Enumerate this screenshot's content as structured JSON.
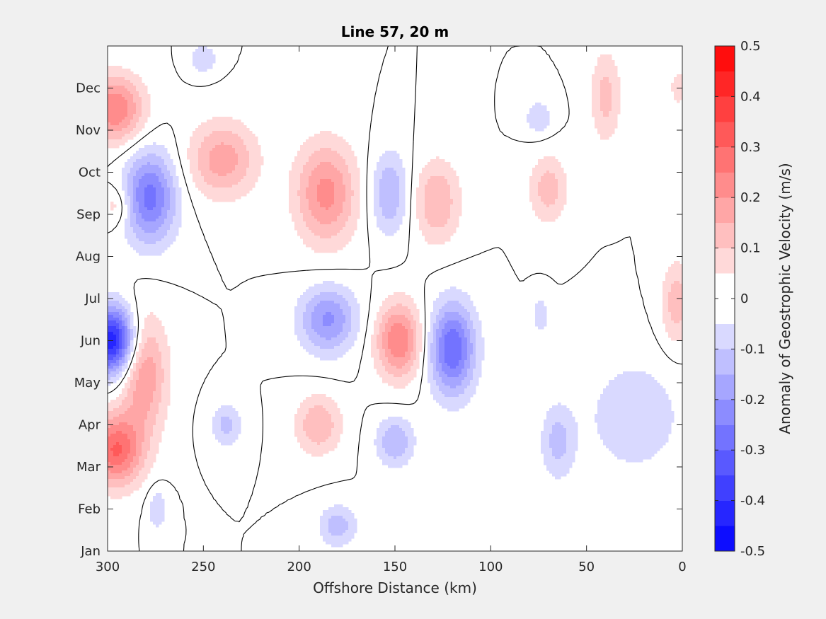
{
  "chart_data": {
    "type": "heatmap",
    "subtype": "filled-contour",
    "title": "Line 57, 20 m",
    "xlabel": "Offshore Distance (km)",
    "ylabel": "",
    "xlim": [
      300,
      0
    ],
    "x_ticks": [
      300,
      250,
      200,
      150,
      100,
      50,
      0
    ],
    "y_ticks": [
      "Jan",
      "Feb",
      "Mar",
      "Apr",
      "May",
      "Jun",
      "Jul",
      "Aug",
      "Sep",
      "Oct",
      "Nov",
      "Dec"
    ],
    "colorbar": {
      "label": "Anomaly of Geostrophic Velocity (m/s)",
      "range": [
        -0.5,
        0.5
      ],
      "ticks": [
        0.5,
        0.4,
        0.3,
        0.2,
        0.1,
        0,
        -0.1,
        -0.2,
        -0.3,
        -0.4,
        -0.5
      ],
      "levels": [
        -0.5,
        -0.45,
        -0.4,
        -0.35,
        -0.3,
        -0.25,
        -0.2,
        -0.15,
        -0.1,
        -0.05,
        0,
        0.05,
        0.1,
        0.15,
        0.2,
        0.25,
        0.3,
        0.35,
        0.4,
        0.45,
        0.5
      ],
      "colormap": "blue-white-red"
    },
    "features": [
      {
        "name": "nearshore-jun-min",
        "x_km": 298,
        "month": 5.0,
        "value": -0.45,
        "sx": 12,
        "sy": 0.8
      },
      {
        "name": "mar-max-offshore",
        "x_km": 296,
        "month": 2.4,
        "value": 0.3,
        "sx": 14,
        "sy": 0.85
      },
      {
        "name": "dec-max-offshore",
        "x_km": 296,
        "month": 10.5,
        "value": 0.25,
        "sx": 15,
        "sy": 0.8
      },
      {
        "name": "aug-sep-min-offshore",
        "x_km": 295,
        "month": 8.2,
        "value": 0.1,
        "sx": 8,
        "sy": 0.5
      },
      {
        "name": "sep-min-275",
        "x_km": 278,
        "month": 8.4,
        "value": -0.27,
        "sx": 14,
        "sy": 1.1
      },
      {
        "name": "may-max-282",
        "x_km": 281,
        "month": 4.2,
        "value": 0.2,
        "sx": 12,
        "sy": 1.4
      },
      {
        "name": "oct-max-240",
        "x_km": 240,
        "month": 9.3,
        "value": 0.18,
        "sx": 18,
        "sy": 0.9
      },
      {
        "name": "sep-max-185",
        "x_km": 186,
        "month": 8.5,
        "value": 0.22,
        "sx": 16,
        "sy": 1.2
      },
      {
        "name": "jun-min-183",
        "x_km": 185,
        "month": 5.5,
        "value": -0.21,
        "sx": 15,
        "sy": 0.8
      },
      {
        "name": "jun-max-147",
        "x_km": 148,
        "month": 5.0,
        "value": 0.25,
        "sx": 12,
        "sy": 0.9
      },
      {
        "name": "may-min-118",
        "x_km": 120,
        "month": 4.8,
        "value": -0.3,
        "sx": 12,
        "sy": 1.1
      },
      {
        "name": "sep-min-152",
        "x_km": 153,
        "month": 8.5,
        "value": -0.15,
        "sx": 10,
        "sy": 1.0
      },
      {
        "name": "sep-max-130",
        "x_km": 128,
        "month": 8.3,
        "value": 0.15,
        "sx": 12,
        "sy": 1.0
      },
      {
        "name": "apr-max-190",
        "x_km": 190,
        "month": 3.0,
        "value": 0.15,
        "sx": 12,
        "sy": 0.7
      },
      {
        "name": "mar-min-150",
        "x_km": 150,
        "month": 2.6,
        "value": -0.15,
        "sx": 10,
        "sy": 0.6
      },
      {
        "name": "mar-min-240",
        "x_km": 238,
        "month": 3.0,
        "value": -0.12,
        "sx": 8,
        "sy": 0.5
      },
      {
        "name": "jan-min-180",
        "x_km": 180,
        "month": 0.6,
        "value": -0.13,
        "sx": 10,
        "sy": 0.5
      },
      {
        "name": "feb-min-275",
        "x_km": 274,
        "month": 1.0,
        "value": -0.1,
        "sx": 5,
        "sy": 0.5
      },
      {
        "name": "mar-min-66",
        "x_km": 65,
        "month": 2.6,
        "value": -0.12,
        "sx": 9,
        "sy": 0.9
      },
      {
        "name": "sep-max-70",
        "x_km": 70,
        "month": 8.6,
        "value": 0.13,
        "sx": 10,
        "sy": 0.8
      },
      {
        "name": "nov-min-75",
        "x_km": 75,
        "month": 10.3,
        "value": -0.1,
        "sx": 7,
        "sy": 0.4
      },
      {
        "name": "nov-max-40",
        "x_km": 40,
        "month": 10.8,
        "value": 0.12,
        "sx": 8,
        "sy": 1.1
      },
      {
        "name": "jun-min-74",
        "x_km": 74,
        "month": 5.6,
        "value": -0.1,
        "sx": 4,
        "sy": 0.4
      },
      {
        "name": "may-apr-min-band",
        "x_km": 25,
        "month": 3.2,
        "value": -0.1,
        "sx": 24,
        "sy": 1.3
      },
      {
        "name": "jul-max-nearshore",
        "x_km": 3,
        "month": 5.9,
        "value": 0.13,
        "sx": 8,
        "sy": 1.0
      },
      {
        "name": "dec-max-nearshore",
        "x_km": 2,
        "month": 11.0,
        "value": 0.1,
        "sx": 4,
        "sy": 0.4
      },
      {
        "name": "dec-min-250",
        "x_km": 250,
        "month": 11.7,
        "value": -0.1,
        "sx": 7,
        "sy": 0.35
      }
    ]
  }
}
